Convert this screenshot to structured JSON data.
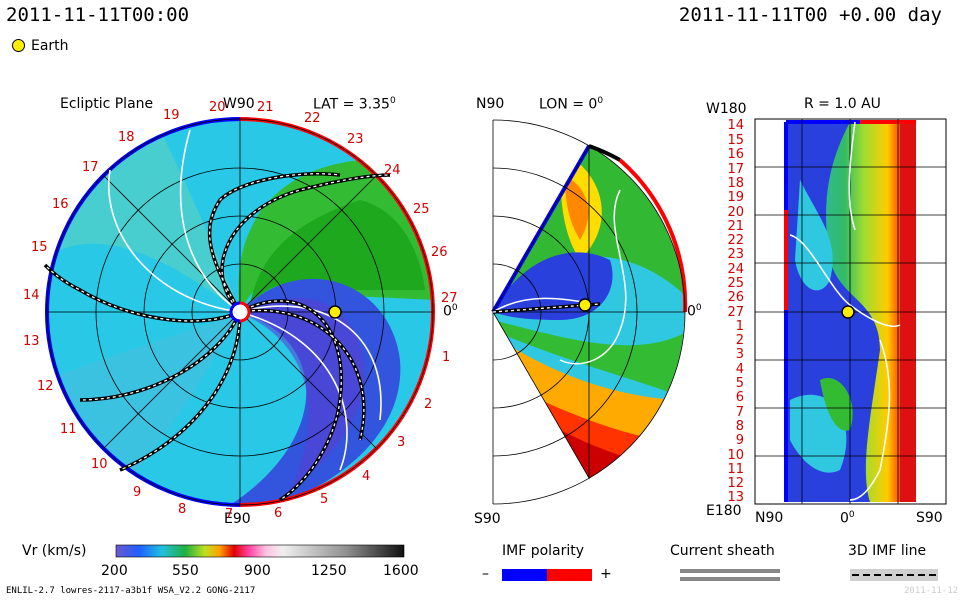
{
  "header": {
    "left_time": "2011-11-11T00:00",
    "right_time": "2011-11-11T00 +0.00 day"
  },
  "legend": {
    "earth_label": "Earth",
    "earth_color": "#ffee00"
  },
  "colors": {
    "neg_polarity": "#0000ff",
    "pos_polarity": "#ff0000",
    "background": "#ffffff"
  },
  "panels": {
    "ecliptic": {
      "title": "Ecliptic Plane",
      "top": "W90",
      "lat": "LAT = 3.35",
      "deg": "0",
      "right": "0",
      "right_deg": "0",
      "bottom": "E90",
      "carrington_ticks": [
        "19",
        "20",
        "21",
        "22",
        "23",
        "24",
        "25",
        "26",
        "27",
        "1",
        "2",
        "3",
        "4",
        "5",
        "6",
        "7",
        "8",
        "9",
        "10",
        "11",
        "12",
        "13",
        "14",
        "15",
        "16",
        "17",
        "18"
      ]
    },
    "meridional": {
      "top_left": "N90",
      "lon": "LON = 0",
      "deg": "0",
      "right": "0",
      "right_deg": "0",
      "bottom": "S90"
    },
    "radial": {
      "top_left": "W180",
      "title": "R = 1.0 AU",
      "ticks": [
        "14",
        "15",
        "16",
        "17",
        "18",
        "19",
        "20",
        "21",
        "22",
        "23",
        "24",
        "25",
        "26",
        "27",
        "1",
        "2",
        "3",
        "4",
        "5",
        "6",
        "7",
        "8",
        "9",
        "10",
        "11",
        "12",
        "13"
      ],
      "bottom_left": "E180",
      "x_left": "N90",
      "x_mid": "0",
      "x_mid_deg": "0",
      "x_right": "S90"
    }
  },
  "colorbar": {
    "label": "Vr (km/s)",
    "ticks": [
      "200",
      "550",
      "900",
      "1250",
      "1600"
    ]
  },
  "imf": {
    "title": "IMF polarity",
    "minus": "–",
    "plus": "+"
  },
  "current_sheath": {
    "title": "Current sheath"
  },
  "imf_line": {
    "title": "3D IMF line"
  },
  "footer": {
    "left": "ENLIL-2.7 lowres-2117-a3b1f WSA_V2.2 GONG-2117",
    "right": "2011-11-12"
  },
  "chart_data": {
    "type": "heatmap",
    "title": "Ecliptic Plane",
    "variable": "Vr (km/s)",
    "colorbar_range": [
      200,
      1600
    ],
    "colorbar_ticks": [
      200,
      550,
      900,
      1250,
      1600
    ],
    "earth": {
      "r_au": 1.0,
      "lat_deg": 3.35,
      "lon_deg": 0
    },
    "time": "2011-11-11T00:00"
  }
}
